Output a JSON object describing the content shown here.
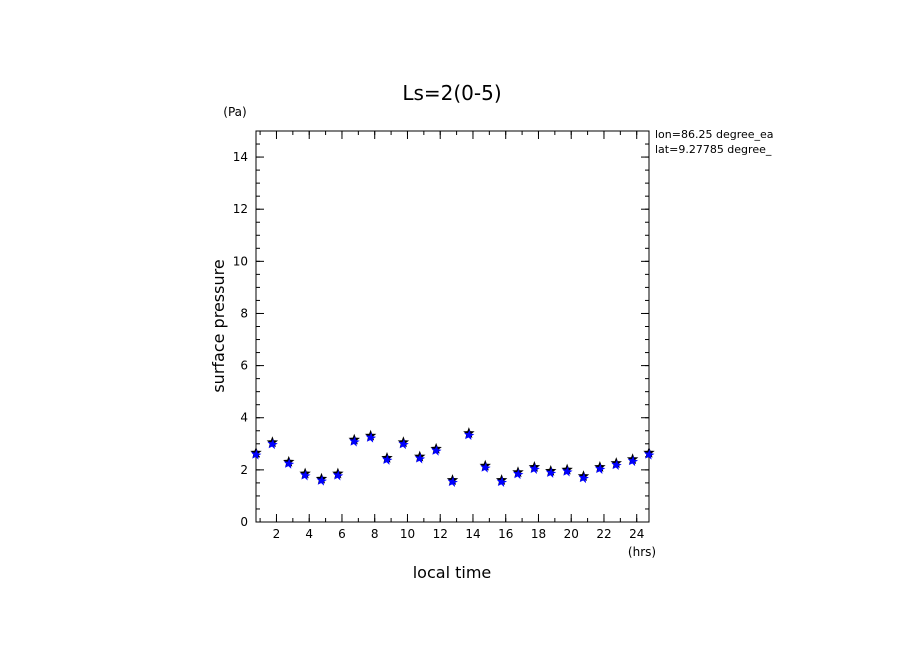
{
  "chart_data": {
    "type": "scatter",
    "title": "Ls=2(0-5)",
    "xlabel": "local time",
    "xunit": "(hrs)",
    "ylabel": "surface pressure",
    "yunit": "(Pa)",
    "xlim": [
      0.75,
      24.75
    ],
    "ylim": [
      0,
      15
    ],
    "xticks": [
      2,
      4,
      6,
      8,
      10,
      12,
      14,
      16,
      18,
      20,
      22,
      24
    ],
    "yticks": [
      0,
      2,
      4,
      6,
      8,
      10,
      12,
      14
    ],
    "annotations": [
      "lon=86.25 degree_ea",
      "lat=9.27785 degree_"
    ],
    "marker_colors": [
      "#000000",
      "#0000ff"
    ],
    "series": [
      {
        "x": [
          0.75,
          1.75,
          2.75,
          3.75,
          4.75,
          5.75,
          6.75,
          7.75,
          8.75,
          9.75,
          10.75,
          11.75,
          12.75,
          13.75,
          14.75,
          15.75,
          16.75,
          17.75,
          18.75,
          19.75,
          20.75,
          21.75,
          22.75,
          23.75,
          24.75
        ],
        "y": [
          2.6,
          3.0,
          2.25,
          1.8,
          1.6,
          1.8,
          3.1,
          3.25,
          2.4,
          3.0,
          2.45,
          2.75,
          1.55,
          3.35,
          2.1,
          1.55,
          1.85,
          2.05,
          1.9,
          1.95,
          1.7,
          2.05,
          2.2,
          2.35,
          2.6
        ]
      }
    ]
  }
}
